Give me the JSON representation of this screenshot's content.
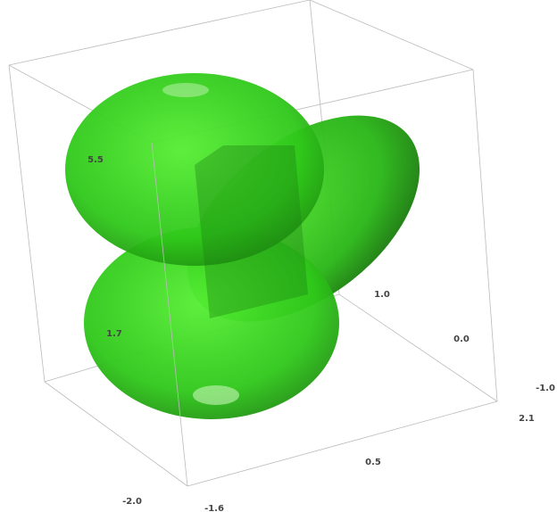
{
  "tick_labels": [
    "5.5",
    "1.7",
    "1.0",
    "0.0",
    "-1.0",
    "2.1",
    "0.5",
    "-2.0",
    "-1.6"
  ]
}
